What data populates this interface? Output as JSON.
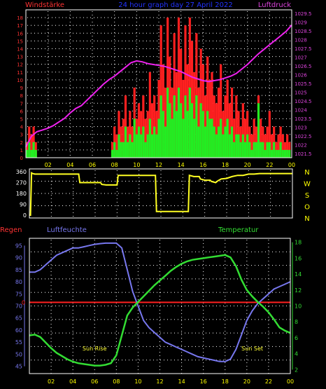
{
  "header": {
    "left_label": "Windstärke",
    "center_label": "24 hour graph day 27 April 2022",
    "right_label": "Luftdruck"
  },
  "colors": {
    "background": "#000000",
    "frame": "#ffffff",
    "grid_dots": "#ffffff",
    "left_axis": "#ff3333",
    "right_axis": "#dd44dd",
    "wind_max": "#ff2020",
    "wind_avg": "#22ee22",
    "pressure": "#ee22ee",
    "direction": "#ffff22",
    "humidity": "#7777ee",
    "temperature": "#33dd33",
    "rain": "#ff2020",
    "title_blue": "#2233ff",
    "sun_labels": "#ffff33",
    "x_ticks": "#ffff00"
  },
  "hour_ticks": [
    "02",
    "04",
    "06",
    "08",
    "10",
    "12",
    "14",
    "16",
    "18",
    "20",
    "22",
    "00"
  ],
  "chart_data": [
    {
      "type": "bar",
      "name": "wind_pressure",
      "title": "24 hour graph day 27 April 2022",
      "left_axis_label": "Windstärke",
      "right_axis_label": "Luftdruck",
      "x_range": [
        0,
        24
      ],
      "y_left_range": [
        0,
        19
      ],
      "y_left_ticks": [
        "0",
        "1",
        "2",
        "3",
        "4",
        "5",
        "6",
        "7",
        "8",
        "9",
        "10",
        "11",
        "12",
        "13",
        "14",
        "15",
        "16",
        "17",
        "18"
      ],
      "y_right_range": [
        1081.5,
        1029.75
      ],
      "y_right_ticks": [
        "1029.5",
        "1029",
        "1028.5",
        "1028",
        "1027.5",
        "1027",
        "1026.5",
        "1026",
        "1025.5",
        "1025",
        "1024.5",
        "1024",
        "1023.5",
        "1023",
        "1022.5",
        "1022",
        "1021.5"
      ],
      "wind_max": {
        "x": [
          0.1,
          0.3,
          0.5,
          0.7,
          0.9,
          7.8,
          8.0,
          8.2,
          8.4,
          8.6,
          8.8,
          9.0,
          9.2,
          9.4,
          9.6,
          9.8,
          10.0,
          10.2,
          10.4,
          10.6,
          10.8,
          11.0,
          11.2,
          11.4,
          11.6,
          11.8,
          12.0,
          12.2,
          12.4,
          12.6,
          12.8,
          13.0,
          13.2,
          13.4,
          13.6,
          13.8,
          14.0,
          14.2,
          14.4,
          14.6,
          14.8,
          15.0,
          15.2,
          15.4,
          15.6,
          15.8,
          16.0,
          16.2,
          16.4,
          16.6,
          16.8,
          17.0,
          17.2,
          17.4,
          17.6,
          17.8,
          18.0,
          18.2,
          18.4,
          18.6,
          18.8,
          19.0,
          19.2,
          19.4,
          19.6,
          19.8,
          20.0,
          20.2,
          20.4,
          20.6,
          20.8,
          21.0,
          21.2,
          21.4,
          21.6,
          21.8,
          22.0,
          22.2,
          22.4,
          22.6,
          22.8,
          23.0,
          23.2,
          23.4,
          23.6,
          23.8
        ],
        "values": [
          2,
          4,
          3,
          4,
          2,
          2,
          4,
          3,
          6,
          4,
          5,
          8,
          4,
          6,
          4,
          9,
          5,
          7,
          6,
          8,
          5,
          6,
          11,
          7,
          8,
          6,
          10,
          17,
          12,
          9,
          18,
          13,
          9,
          16,
          11,
          18,
          14,
          10,
          17,
          12,
          18,
          15,
          11,
          16,
          9,
          14,
          12,
          8,
          13,
          10,
          11,
          8,
          7,
          9,
          12,
          6,
          8,
          10,
          7,
          9,
          5,
          8,
          6,
          4,
          7,
          5,
          6,
          4,
          3,
          5,
          4,
          8,
          5,
          4,
          3,
          4,
          6,
          3,
          4,
          2,
          3,
          4,
          3,
          2,
          3,
          2
        ]
      },
      "wind_avg": {
        "x": [
          0.1,
          0.3,
          0.5,
          0.7,
          0.9,
          7.8,
          8.0,
          8.2,
          8.4,
          8.6,
          8.8,
          9.0,
          9.2,
          9.4,
          9.6,
          9.8,
          10.0,
          10.2,
          10.4,
          10.6,
          10.8,
          11.0,
          11.2,
          11.4,
          11.6,
          11.8,
          12.0,
          12.2,
          12.4,
          12.6,
          12.8,
          13.0,
          13.2,
          13.4,
          13.6,
          13.8,
          14.0,
          14.2,
          14.4,
          14.6,
          14.8,
          15.0,
          15.2,
          15.4,
          15.6,
          15.8,
          16.0,
          16.2,
          16.4,
          16.6,
          16.8,
          17.0,
          17.2,
          17.4,
          17.6,
          17.8,
          18.0,
          18.2,
          18.4,
          18.6,
          18.8,
          19.0,
          19.2,
          19.4,
          19.6,
          19.8,
          20.0,
          20.2,
          20.4,
          20.6,
          20.8,
          21.0,
          21.2,
          21.4,
          21.6,
          21.8,
          22.0,
          22.2,
          22.4,
          22.6,
          22.8,
          23.0,
          23.2,
          23.4,
          23.6,
          23.8
        ],
        "values": [
          1,
          2,
          1,
          2,
          1,
          1,
          2,
          1,
          3,
          2,
          2,
          4,
          2,
          3,
          2,
          5,
          3,
          4,
          3,
          4,
          2,
          3,
          5,
          3,
          4,
          3,
          5,
          8,
          6,
          4,
          9,
          7,
          5,
          8,
          6,
          9,
          7,
          5,
          8,
          6,
          9,
          7,
          5,
          8,
          4,
          7,
          6,
          4,
          6,
          5,
          5,
          4,
          3,
          4,
          5,
          3,
          4,
          5,
          3,
          4,
          2,
          3,
          3,
          2,
          3,
          2,
          3,
          2,
          1,
          2,
          2,
          7,
          2,
          2,
          1,
          2,
          2,
          1,
          2,
          1,
          1,
          2,
          1,
          1,
          1,
          1
        ]
      },
      "pressure": {
        "x": [
          0,
          0.5,
          1,
          1.5,
          2,
          2.5,
          3,
          3.5,
          4,
          4.5,
          5,
          5.5,
          6,
          6.5,
          7,
          7.5,
          8,
          8.5,
          9,
          9.5,
          10,
          10.5,
          11,
          11.5,
          12,
          12.5,
          13,
          13.5,
          14,
          14.5,
          15,
          15.5,
          16,
          16.5,
          17,
          17.5,
          18,
          18.5,
          19,
          19.5,
          20,
          20.5,
          21,
          21.5,
          22,
          22.5,
          23,
          23.5,
          24
        ],
        "values": [
          1022.1,
          1022.7,
          1022.95,
          1023.05,
          1023.15,
          1023.3,
          1023.5,
          1023.7,
          1024.0,
          1024.25,
          1024.4,
          1024.7,
          1025.0,
          1025.3,
          1025.6,
          1025.85,
          1026.05,
          1026.3,
          1026.55,
          1026.8,
          1026.9,
          1026.85,
          1026.75,
          1026.7,
          1026.65,
          1026.6,
          1026.5,
          1026.4,
          1026.3,
          1026.15,
          1026.0,
          1025.9,
          1025.8,
          1025.75,
          1025.8,
          1025.85,
          1025.95,
          1026.05,
          1026.2,
          1026.45,
          1026.7,
          1027.0,
          1027.3,
          1027.55,
          1027.8,
          1028.05,
          1028.3,
          1028.55,
          1028.9
        ]
      }
    },
    {
      "type": "line",
      "name": "wind_direction",
      "x_range": [
        0,
        24
      ],
      "y_range": [
        0,
        360
      ],
      "y_ticks": [
        "360",
        "270",
        "180",
        "90",
        "0"
      ],
      "right_ticks": [
        "N",
        "W",
        "S",
        "O",
        "N"
      ],
      "series": [
        {
          "x": [
            0,
            0.1,
            0.2,
            0.3,
            0.5,
            1.0,
            1.5,
            2.0,
            2.5,
            3.0,
            3.5,
            4.0,
            4.5,
            4.6,
            5.0,
            5.5,
            6.0,
            6.5,
            6.6,
            7.0,
            7.5,
            8.0,
            8.1,
            8.5,
            9.0,
            9.5,
            10.0,
            10.5,
            11.0,
            11.5,
            11.6,
            12.0,
            12.5,
            13.0,
            13.5,
            14.0,
            14.5,
            14.6,
            15.0,
            15.5,
            15.6,
            16.0,
            16.5,
            16.6,
            17.0,
            17.2,
            17.5,
            18.0,
            18.5,
            19.0,
            19.5,
            20.0,
            20.5,
            21.0,
            21.5,
            22.0,
            22.5,
            23.0,
            23.5,
            24.0
          ],
          "values": [
            0,
            0,
            350,
            345,
            340,
            340,
            340,
            340,
            340,
            340,
            340,
            340,
            340,
            270,
            270,
            270,
            270,
            270,
            255,
            250,
            250,
            250,
            330,
            330,
            330,
            330,
            330,
            330,
            330,
            330,
            30,
            30,
            30,
            30,
            30,
            30,
            30,
            330,
            320,
            320,
            300,
            290,
            290,
            280,
            270,
            285,
            300,
            305,
            320,
            330,
            330,
            340,
            340,
            345,
            345,
            345,
            345,
            345,
            345,
            345
          ]
        }
      ]
    },
    {
      "type": "line",
      "name": "humidity_temperature",
      "x_range": [
        0,
        24
      ],
      "left_axis_label": "Regen",
      "humidity_label": "Luftfeuchte",
      "temperature_label": "Temperatur",
      "rain_value_label": "0",
      "humidity_axis": {
        "range": [
          42,
          98
        ],
        "ticks": [
          "95",
          "90",
          "85",
          "80",
          "75",
          "70",
          "65",
          "60",
          "55",
          "50",
          "45"
        ]
      },
      "temperature_axis": {
        "range": [
          1.5,
          18.5
        ],
        "ticks": [
          "18",
          "16",
          "14",
          "12",
          "10",
          "8",
          "6",
          "4",
          "2"
        ]
      },
      "annotations": [
        {
          "text": "Sun Rise",
          "x": 6.0
        },
        {
          "text": "Sun Set",
          "x": 20.5
        }
      ],
      "series": [
        {
          "name": "Luftfeuchte",
          "x": [
            0,
            0.5,
            1,
            1.5,
            2,
            2.5,
            3,
            3.5,
            4,
            4.5,
            5,
            5.5,
            6,
            6.5,
            7,
            7.5,
            8,
            8.5,
            9,
            9.5,
            10,
            10.5,
            11,
            11.5,
            12,
            12.5,
            13,
            13.5,
            14,
            14.5,
            15,
            15.5,
            16,
            16.5,
            17,
            17.5,
            18,
            18.5,
            19,
            19.5,
            20,
            20.5,
            21,
            21.5,
            22,
            22.5,
            23,
            23.5,
            24
          ],
          "values": [
            84,
            84,
            85,
            87,
            89,
            91,
            92,
            93,
            94,
            94,
            94.5,
            95,
            95.5,
            95.8,
            96,
            96,
            96,
            94,
            85,
            76,
            70,
            64,
            61,
            59,
            57,
            55,
            54,
            53,
            52,
            51,
            50,
            49,
            48.5,
            48,
            47.5,
            47,
            47,
            48,
            52,
            58,
            64,
            68,
            71,
            73,
            75,
            77,
            78,
            79,
            80
          ]
        },
        {
          "name": "Temperatur",
          "x": [
            0,
            0.5,
            1,
            1.5,
            2,
            2.5,
            3,
            3.5,
            4,
            4.5,
            5,
            5.5,
            6,
            6.5,
            7,
            7.5,
            8,
            8.5,
            9,
            9.5,
            10,
            10.5,
            11,
            11.5,
            12,
            12.5,
            13,
            13.5,
            14,
            14.5,
            15,
            15.5,
            16,
            16.5,
            17,
            17.5,
            18,
            18.5,
            19,
            19.5,
            20,
            20.5,
            21,
            21.5,
            22,
            22.5,
            23,
            23.5,
            24
          ],
          "values": [
            6.3,
            6.4,
            6.1,
            5.4,
            4.7,
            4.1,
            3.7,
            3.3,
            3.0,
            2.8,
            2.7,
            2.6,
            2.5,
            2.5,
            2.6,
            2.8,
            3.8,
            6.3,
            8.8,
            9.8,
            10.5,
            11.2,
            11.9,
            12.6,
            13.2,
            13.8,
            14.4,
            14.9,
            15.3,
            15.6,
            15.8,
            15.9,
            16.0,
            16.1,
            16.2,
            16.3,
            16.4,
            16.1,
            15.0,
            13.3,
            12.0,
            11.2,
            10.5,
            9.9,
            9.2,
            8.3,
            7.3,
            6.9,
            6.6
          ]
        },
        {
          "name": "Regen",
          "x": [
            0,
            24
          ],
          "values": [
            0,
            0
          ]
        }
      ]
    }
  ]
}
